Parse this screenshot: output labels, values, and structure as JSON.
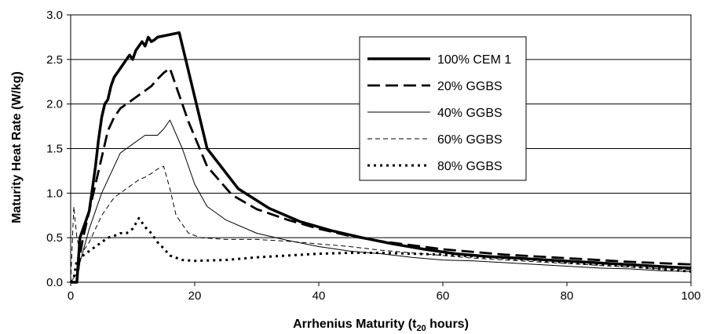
{
  "chart_data": {
    "type": "line",
    "title": "",
    "xlabel_main": "Arrhenius Maturity (t",
    "xlabel_sub": "20",
    "xlabel_tail": " hours)",
    "ylabel": "Maturity Heat Rate (W/kg)",
    "xlim": [
      0,
      100
    ],
    "ylim": [
      0,
      3.0
    ],
    "xticks": [
      0,
      20,
      40,
      60,
      80,
      100
    ],
    "yticks": [
      "0.0",
      "0.5",
      "1.0",
      "1.5",
      "2.0",
      "2.5",
      "3.0"
    ],
    "grid": "horizontal",
    "legend_position": "top-right",
    "series": [
      {
        "name": "100% CEM 1",
        "style": "solid-thick",
        "x": [
          0,
          1,
          1.5,
          2,
          2.5,
          3,
          3.5,
          4,
          4.5,
          5,
          5.5,
          6,
          6.5,
          7,
          7.5,
          8,
          8.5,
          9,
          9.5,
          10,
          10.5,
          11,
          11.5,
          12,
          12.5,
          13,
          13.5,
          14,
          17.5,
          22,
          27,
          32,
          37,
          42,
          47,
          52,
          57,
          62,
          67,
          72,
          77,
          82,
          87,
          92,
          97,
          100
        ],
        "y": [
          0,
          0,
          0.5,
          0.6,
          0.7,
          0.8,
          1.05,
          1.3,
          1.6,
          1.85,
          2.0,
          2.05,
          2.2,
          2.3,
          2.35,
          2.4,
          2.45,
          2.5,
          2.55,
          2.5,
          2.6,
          2.65,
          2.7,
          2.65,
          2.75,
          2.7,
          2.72,
          2.75,
          2.8,
          1.5,
          1.05,
          0.83,
          0.68,
          0.58,
          0.5,
          0.43,
          0.37,
          0.32,
          0.29,
          0.27,
          0.25,
          0.23,
          0.21,
          0.19,
          0.17,
          0.16
        ]
      },
      {
        "name": "20% GGBS",
        "style": "long-dash",
        "x": [
          0,
          1,
          1.5,
          2,
          3,
          4,
          5,
          6,
          7,
          8,
          9,
          10,
          11,
          12,
          13,
          14,
          15,
          16,
          19,
          22,
          26,
          30,
          35,
          40,
          45,
          50,
          60,
          70,
          80,
          90,
          100
        ],
        "y": [
          0,
          0,
          0.3,
          0.5,
          0.8,
          1.1,
          1.4,
          1.7,
          1.85,
          1.95,
          2.0,
          2.05,
          2.1,
          2.15,
          2.2,
          2.28,
          2.35,
          2.4,
          1.8,
          1.3,
          0.98,
          0.82,
          0.7,
          0.6,
          0.52,
          0.46,
          0.37,
          0.31,
          0.27,
          0.23,
          0.2
        ]
      },
      {
        "name": "40% GGBS",
        "style": "solid-thin",
        "x": [
          0,
          1,
          2,
          3,
          4,
          5,
          6,
          7,
          8,
          9,
          10,
          11,
          12,
          13,
          14,
          15,
          16,
          18,
          20,
          22,
          25,
          30,
          35,
          40,
          45,
          50,
          55,
          60,
          65,
          70,
          75,
          80,
          85,
          90,
          95,
          100
        ],
        "y": [
          0,
          0.1,
          0.35,
          0.6,
          0.8,
          1.0,
          1.15,
          1.3,
          1.45,
          1.5,
          1.55,
          1.6,
          1.65,
          1.65,
          1.65,
          1.72,
          1.82,
          1.5,
          1.1,
          0.85,
          0.7,
          0.55,
          0.47,
          0.4,
          0.35,
          0.32,
          0.28,
          0.25,
          0.24,
          0.22,
          0.2,
          0.18,
          0.16,
          0.15,
          0.13,
          0.12
        ]
      },
      {
        "name": "60% GGBS",
        "style": "dash",
        "x": [
          0,
          0.5,
          1,
          1.5,
          2,
          3,
          4,
          5,
          6,
          7,
          8,
          9,
          10,
          11,
          12,
          13,
          14,
          15,
          16,
          17,
          19,
          21,
          25,
          30,
          35,
          40,
          45,
          50,
          55,
          60,
          65,
          70,
          75,
          80,
          85,
          90,
          95,
          100
        ],
        "y": [
          0,
          0.85,
          0.5,
          0.35,
          0.35,
          0.45,
          0.6,
          0.75,
          0.85,
          0.95,
          1.0,
          1.05,
          1.1,
          1.15,
          1.18,
          1.22,
          1.27,
          1.3,
          1.05,
          0.75,
          0.55,
          0.5,
          0.48,
          0.48,
          0.46,
          0.43,
          0.4,
          0.36,
          0.33,
          0.3,
          0.27,
          0.25,
          0.23,
          0.21,
          0.19,
          0.17,
          0.15,
          0.14
        ]
      },
      {
        "name": "80% GGBS",
        "style": "dot",
        "x": [
          0,
          0.5,
          1,
          1.5,
          2,
          3,
          4,
          5,
          6,
          7,
          8,
          9,
          10,
          11,
          12,
          13,
          14,
          15,
          16,
          18,
          20,
          25,
          30,
          35,
          40,
          45,
          50,
          55,
          60,
          65,
          70,
          75,
          80,
          85,
          90,
          95,
          100
        ],
        "y": [
          0,
          0.05,
          0.25,
          0.3,
          0.3,
          0.35,
          0.4,
          0.45,
          0.5,
          0.52,
          0.55,
          0.55,
          0.6,
          0.72,
          0.62,
          0.55,
          0.45,
          0.38,
          0.3,
          0.25,
          0.24,
          0.25,
          0.28,
          0.3,
          0.32,
          0.33,
          0.33,
          0.32,
          0.31,
          0.29,
          0.27,
          0.25,
          0.22,
          0.2,
          0.18,
          0.15,
          0.12
        ]
      }
    ]
  }
}
